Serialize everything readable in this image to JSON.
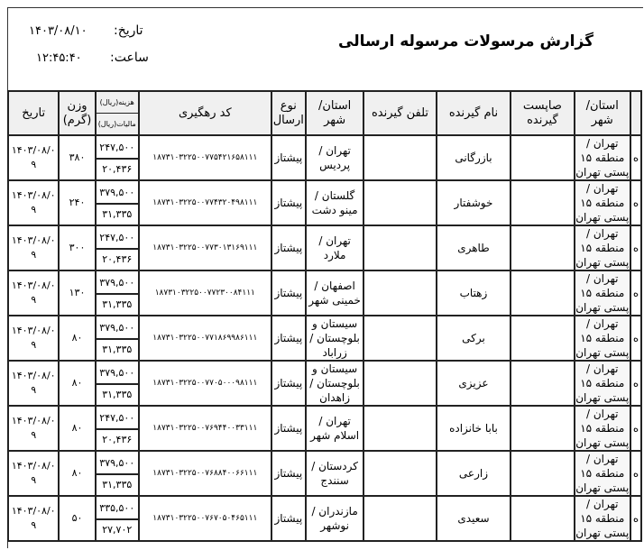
{
  "report": {
    "title": "گزارش مرسولات مرسوله ارسالی",
    "date_label": "تاریخ:",
    "date_value": "۱۴۰۳/۰۸/۱۰",
    "time_label": "ساعت:",
    "time_value": "۱۲:۴۵:۴۰"
  },
  "columns": {
    "sender_city": "استان/ شهر",
    "sender_postcode": "صاپست گیرنده",
    "receiver_name": "نام گیرنده",
    "receiver_phone": "تلفن گیرنده",
    "receiver_city": "استان/ شهر",
    "send_type": "نوع ارسال",
    "tracking_code": "کد رهگیری",
    "cost": "هزینه(ریال)",
    "tax": "مالیات(ریال)",
    "weight": "وزن (گرم)",
    "date": "تاریخ"
  },
  "rows": [
    {
      "sender_city": "تهران / منطقه ۱۵ پستی تهران",
      "extra": "ه",
      "postcode": "",
      "name": "بازرگانی",
      "phone": "",
      "city": "تهران / پردیس",
      "type": "پیشتاز",
      "code": "۱۸۷۳۱۰۳۲۲۵۰۰۷۷۵۴۲۱۶۵۸۱۱۱",
      "cost": "۲۴۷,۵۰۰",
      "tax": "۲۰,۴۳۶",
      "weight": "۳۸۰",
      "date": "۱۴۰۳/۰۸/۰۹"
    },
    {
      "sender_city": "تهران / منطقه ۱۵ پستی تهران",
      "extra": "ه",
      "postcode": "",
      "name": "خوشفتار",
      "phone": "",
      "city": "گلستان / مینو دشت",
      "type": "پیشتاز",
      "code": "۱۸۷۳۱۰۳۲۲۵۰۰۷۷۴۳۲۰۴۹۸۱۱۱",
      "cost": "۳۷۹,۵۰۰",
      "tax": "۳۱,۳۳۵",
      "weight": "۲۴۰",
      "date": "۱۴۰۳/۰۸/۰۹"
    },
    {
      "sender_city": "تهران / منطقه ۱۵ پستی تهران",
      "extra": "ه",
      "postcode": "",
      "name": "طاهری",
      "phone": "",
      "city": "تهران / ملارد",
      "type": "پیشتاز",
      "code": "۱۸۷۳۱۰۳۲۲۵۰۰۷۷۳۰۱۳۱۶۹۱۱۱",
      "cost": "۲۴۷,۵۰۰",
      "tax": "۲۰,۴۳۶",
      "weight": "۳۰۰",
      "date": "۱۴۰۳/۰۸/۰۹"
    },
    {
      "sender_city": "تهران / منطقه ۱۵ پستی تهران",
      "extra": "ه",
      "postcode": "",
      "name": "زهتاب",
      "phone": "",
      "city": "اصفهان / خمینی شهر",
      "type": "پیشتاز",
      "code": "۱۸۷۳۱۰۳۲۲۵۰۰۷۷۲۳۰۰۸۴۱۱۱",
      "cost": "۳۷۹,۵۰۰",
      "tax": "۳۱,۳۳۵",
      "weight": "۱۳۰",
      "date": "۱۴۰۳/۰۸/۰۹"
    },
    {
      "sender_city": "تهران / منطقه ۱۵ پستی تهران",
      "extra": "ه",
      "postcode": "",
      "name": "برکی",
      "phone": "",
      "city": "سیستان و بلوچستان / زراباد",
      "type": "پیشتاز",
      "code": "۱۸۷۳۱۰۳۲۲۵۰۰۷۷۱۸۶۹۹۸۶۱۱۱",
      "cost": "۳۷۹,۵۰۰",
      "tax": "۳۱,۳۳۵",
      "weight": "۸۰",
      "date": "۱۴۰۳/۰۸/۰۹"
    },
    {
      "sender_city": "تهران / منطقه ۱۵ پستی تهران",
      "extra": "ه",
      "postcode": "",
      "name": "عزیزی",
      "phone": "",
      "city": "سیستان و بلوچستان / زاهدان",
      "type": "پیشتاز",
      "code": "۱۸۷۳۱۰۳۲۲۵۰۰۷۷۰۵۰۰۰۹۸۱۱۱",
      "cost": "۳۷۹,۵۰۰",
      "tax": "۳۱,۳۳۵",
      "weight": "۸۰",
      "date": "۱۴۰۳/۰۸/۰۹"
    },
    {
      "sender_city": "تهران / منطقه ۱۵ پستی تهران",
      "extra": "ه",
      "postcode": "",
      "name": "بابا خانزاده",
      "phone": "",
      "city": "تهران / اسلام شهر",
      "type": "پیشتاز",
      "code": "۱۸۷۳۱۰۳۲۲۵۰۰۷۶۹۴۴۰۰۳۳۱۱۱",
      "cost": "۲۴۷,۵۰۰",
      "tax": "۲۰,۴۳۶",
      "weight": "۸۰",
      "date": "۱۴۰۳/۰۸/۰۹"
    },
    {
      "sender_city": "تهران / منطقه ۱۵ پستی تهران",
      "extra": "ه",
      "postcode": "",
      "name": "زارعی",
      "phone": "",
      "city": "کردستان / سنندج",
      "type": "پیشتاز",
      "code": "۱۸۷۳۱۰۳۲۲۵۰۰۷۶۸۸۴۰۰۶۶۱۱۱",
      "cost": "۳۷۹,۵۰۰",
      "tax": "۳۱,۳۳۵",
      "weight": "۸۰",
      "date": "۱۴۰۳/۰۸/۰۹"
    },
    {
      "sender_city": "تهران / منطقه ۱۵ پستی تهران",
      "extra": "ه",
      "postcode": "",
      "name": "سعیدی",
      "phone": "",
      "city": "مازندران / نوشهر",
      "type": "پیشتاز",
      "code": "۱۸۷۳۱۰۳۲۲۵۰۰۷۶۷۰۵۰۴۶۵۱۱۱",
      "cost": "۳۳۵,۵۰۰",
      "tax": "۲۷,۷۰۲",
      "weight": "۵۰",
      "date": "۱۴۰۳/۰۸/۰۹"
    }
  ]
}
